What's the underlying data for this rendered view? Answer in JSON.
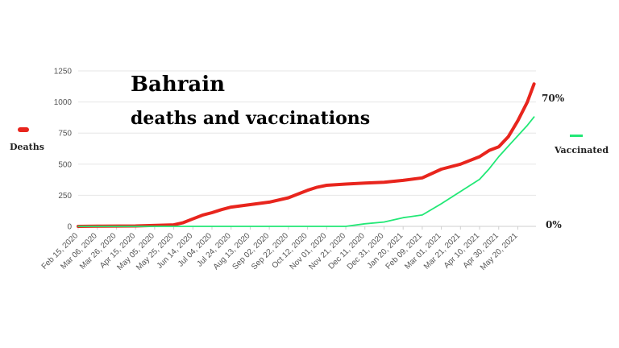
{
  "chart_data": {
    "type": "line",
    "title": "Bahrain",
    "subtitle": "deaths and vaccinations",
    "x_tick_labels": [
      "Feb 15, 2020",
      "Mar 06, 2020",
      "Mar 26, 2020",
      "Apr 15, 2020",
      "May 05, 2020",
      "May 25, 2020",
      "Jun 14, 2020",
      "Jul 04, 2020",
      "Jul 24, 2020",
      "Aug 13, 2020",
      "Sep 02, 2020",
      "Sep 22, 2020",
      "Oct 12, 2020",
      "Nov 01, 2020",
      "Nov 21, 2020",
      "Dec 11, 2020",
      "Dec 31, 2020",
      "Jan 20, 2021",
      "Feb 09, 2021",
      "Mar 01, 2021",
      "Mar 21, 2021",
      "Apr 10, 2021",
      "Apr 30, 2021",
      "May 20, 2021"
    ],
    "y_left": {
      "ticks": [
        0,
        250,
        500,
        750,
        1000,
        1250
      ],
      "tick_labels": [
        "0",
        "250",
        "500",
        "750",
        "1000",
        "1250"
      ],
      "range": [
        0,
        1250
      ]
    },
    "y_right": {
      "tick_labels": [
        "0%",
        "70%"
      ],
      "range_percent": [
        0,
        70
      ]
    },
    "grid": true,
    "series": [
      {
        "name": "Deaths",
        "axis": "left",
        "color": "#e8251d",
        "points": [
          [
            "Feb 15, 2020",
            0
          ],
          [
            "Mar 06, 2020",
            1
          ],
          [
            "Apr 15, 2020",
            3
          ],
          [
            "May 25, 2020",
            12
          ],
          [
            "Jun 04, 2020",
            30
          ],
          [
            "Jun 14, 2020",
            60
          ],
          [
            "Jun 24, 2020",
            90
          ],
          [
            "Jul 04, 2020",
            110
          ],
          [
            "Jul 14, 2020",
            135
          ],
          [
            "Jul 24, 2020",
            155
          ],
          [
            "Aug 13, 2020",
            175
          ],
          [
            "Sep 02, 2020",
            195
          ],
          [
            "Sep 22, 2020",
            230
          ],
          [
            "Oct 02, 2020",
            260
          ],
          [
            "Oct 12, 2020",
            290
          ],
          [
            "Oct 22, 2020",
            315
          ],
          [
            "Nov 01, 2020",
            330
          ],
          [
            "Nov 21, 2020",
            340
          ],
          [
            "Dec 11, 2020",
            348
          ],
          [
            "Dec 31, 2020",
            355
          ],
          [
            "Jan 20, 2021",
            370
          ],
          [
            "Feb 09, 2021",
            390
          ],
          [
            "Mar 01, 2021",
            460
          ],
          [
            "Mar 21, 2021",
            500
          ],
          [
            "Apr 10, 2021",
            560
          ],
          [
            "Apr 20, 2021",
            610
          ],
          [
            "Apr 30, 2021",
            640
          ],
          [
            "May 10, 2021",
            720
          ],
          [
            "May 20, 2021",
            850
          ],
          [
            "May 30, 2021",
            1000
          ],
          [
            "Jun 06, 2021",
            1145
          ]
        ]
      },
      {
        "name": "Vaccinated",
        "axis": "right",
        "color": "#22e876",
        "points": [
          [
            "Feb 15, 2020",
            0
          ],
          [
            "Nov 21, 2020",
            0
          ],
          [
            "Dec 11, 2020",
            1.5
          ],
          [
            "Dec 31, 2020",
            2.5
          ],
          [
            "Jan 20, 2021",
            5
          ],
          [
            "Feb 09, 2021",
            6.5
          ],
          [
            "Mar 01, 2021",
            13
          ],
          [
            "Mar 21, 2021",
            20
          ],
          [
            "Apr 10, 2021",
            27
          ],
          [
            "Apr 20, 2021",
            33
          ],
          [
            "Apr 30, 2021",
            40
          ],
          [
            "May 10, 2021",
            46
          ],
          [
            "May 20, 2021",
            52
          ],
          [
            "May 30, 2021",
            58
          ],
          [
            "Jun 06, 2021",
            62.8
          ]
        ]
      }
    ]
  },
  "legend": {
    "deaths_label": "Deaths",
    "vaccinated_label": "Vaccinated"
  },
  "right_axis_labels": {
    "top": "70%",
    "bottom": "0%"
  }
}
